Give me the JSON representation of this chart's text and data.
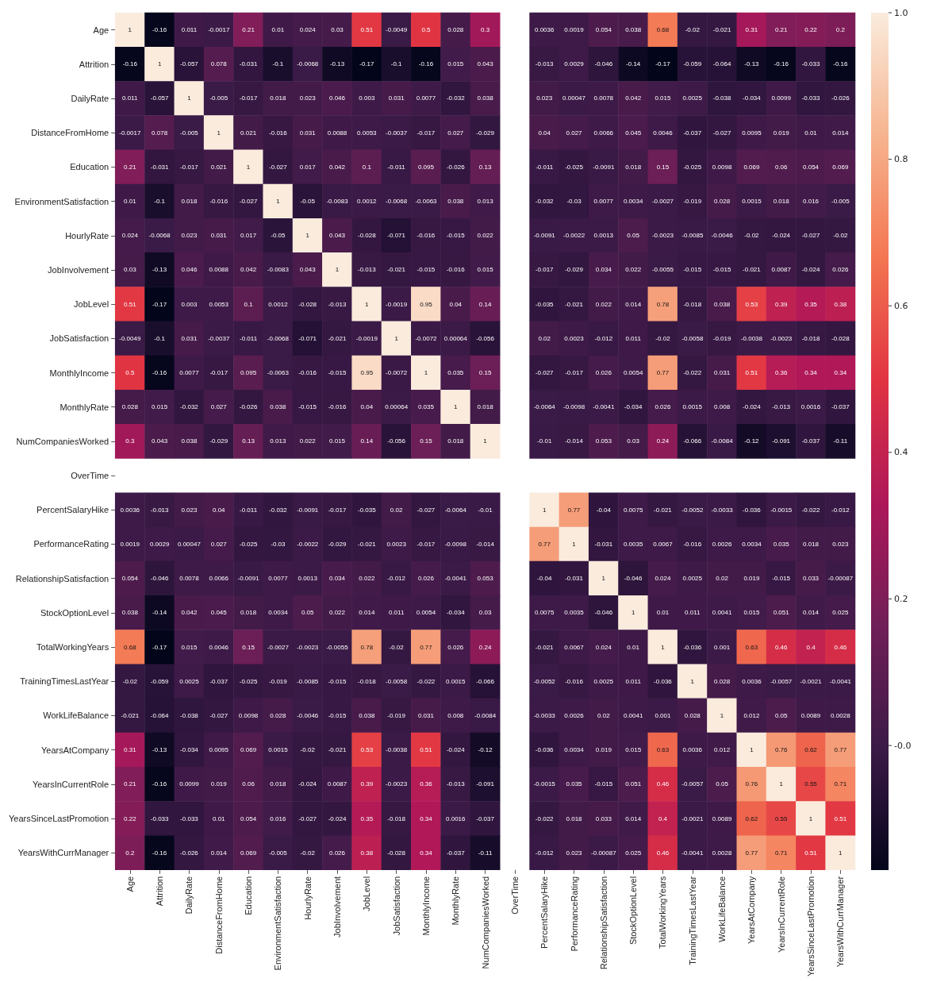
{
  "chart_data": {
    "type": "heatmap",
    "categories": [
      "Age",
      "Attrition",
      "DailyRate",
      "DistanceFromHome",
      "Education",
      "EnvironmentSatisfaction",
      "HourlyRate",
      "JobInvolvement",
      "JobLevel",
      "JobSatisfaction",
      "MonthlyIncome",
      "MonthlyRate",
      "NumCompaniesWorked",
      "OverTime",
      "PercentSalaryHike",
      "PerformanceRating",
      "RelationshipSatisfaction",
      "StockOptionLevel",
      "TotalWorkingYears",
      "TrainingTimesLastYear",
      "WorkLifeBalance",
      "YearsAtCompany",
      "YearsInCurrentRole",
      "YearsSinceLastPromotion",
      "YearsWithCurrManager"
    ],
    "y_categories": [
      "Age",
      "Attrition",
      "DailyRate",
      "DistanceFromHome",
      "Education",
      "EnvironmentSatisfaction",
      "HourlyRate",
      "JobInvolvement",
      "JobLevel",
      "JobSatisfaction",
      "MonthlyIncome",
      "MonthlyRate",
      "NumCompaniesWorked",
      "OverTime",
      "PercentSalaryHike",
      "PerformanceRating",
      "RelationshipSatisfaction",
      "StockOptionLevel",
      "TotalWorkingYears",
      "TrainingTimesLastYear",
      "WorkLifeBalance",
      "YearsAtCompany",
      "YearsInCurrentRole",
      "YearsSinceLastPromotion",
      "YearsWithCurrManager"
    ],
    "cells": [
      [
        1,
        -0.16,
        0.011,
        -0.0017,
        0.21,
        0.01,
        0.024,
        0.03,
        0.51,
        -0.0049,
        0.5,
        0.028,
        0.3,
        null,
        0.0036,
        0.0019,
        0.054,
        0.038,
        0.68,
        -0.02,
        -0.021,
        0.31,
        0.21,
        0.22,
        0.2
      ],
      [
        -0.16,
        1,
        -0.057,
        0.078,
        -0.031,
        -0.1,
        -0.0068,
        -0.13,
        -0.17,
        -0.1,
        -0.16,
        0.015,
        0.043,
        null,
        -0.013,
        0.0029,
        -0.046,
        -0.14,
        -0.17,
        -0.059,
        -0.064,
        -0.13,
        -0.16,
        -0.033,
        -0.16
      ],
      [
        0.011,
        -0.057,
        1,
        -0.005,
        -0.017,
        0.018,
        0.023,
        0.046,
        0.003,
        0.031,
        0.0077,
        -0.032,
        0.038,
        null,
        0.023,
        0.00047,
        0.0078,
        0.042,
        0.015,
        0.0025,
        -0.038,
        -0.034,
        0.0099,
        -0.033,
        -0.026
      ],
      [
        -0.0017,
        0.078,
        -0.005,
        1,
        0.021,
        -0.016,
        0.031,
        0.0088,
        0.0053,
        -0.0037,
        -0.017,
        0.027,
        -0.029,
        null,
        0.04,
        0.027,
        0.0066,
        0.045,
        0.0046,
        -0.037,
        -0.027,
        0.0095,
        0.019,
        0.01,
        0.014
      ],
      [
        0.21,
        -0.031,
        -0.017,
        0.021,
        1,
        -0.027,
        0.017,
        0.042,
        0.1,
        -0.011,
        0.095,
        -0.026,
        0.13,
        null,
        -0.011,
        -0.025,
        -0.0091,
        0.018,
        0.15,
        -0.025,
        0.0098,
        0.069,
        0.06,
        0.054,
        0.069
      ],
      [
        0.01,
        -0.1,
        0.018,
        -0.016,
        -0.027,
        1,
        -0.05,
        -0.0083,
        0.0012,
        -0.0068,
        -0.0063,
        0.038,
        0.013,
        null,
        -0.032,
        -0.03,
        0.0077,
        0.0034,
        -0.0027,
        -0.019,
        0.028,
        0.0015,
        0.018,
        0.016,
        -0.005
      ],
      [
        0.024,
        -0.0068,
        0.023,
        0.031,
        0.017,
        -0.05,
        1,
        0.043,
        -0.028,
        -0.071,
        -0.016,
        -0.015,
        0.022,
        null,
        -0.0091,
        -0.0022,
        0.0013,
        0.05,
        -0.0023,
        -0.0085,
        -0.0046,
        -0.02,
        -0.024,
        -0.027,
        -0.02
      ],
      [
        0.03,
        -0.13,
        0.046,
        0.0088,
        0.042,
        -0.0083,
        0.043,
        1,
        -0.013,
        -0.021,
        -0.015,
        -0.016,
        0.015,
        null,
        -0.017,
        -0.029,
        0.034,
        0.022,
        -0.0055,
        -0.015,
        -0.015,
        -0.021,
        0.0087,
        -0.024,
        0.026
      ],
      [
        0.51,
        -0.17,
        0.003,
        0.0053,
        0.1,
        0.0012,
        -0.028,
        -0.013,
        1,
        -0.0019,
        0.95,
        0.04,
        0.14,
        null,
        -0.035,
        -0.021,
        0.022,
        0.014,
        0.78,
        -0.018,
        0.038,
        0.53,
        0.39,
        0.35,
        0.38
      ],
      [
        -0.0049,
        -0.1,
        0.031,
        -0.0037,
        -0.011,
        -0.0068,
        -0.071,
        -0.021,
        -0.0019,
        1,
        -0.0072,
        0.00064,
        -0.056,
        null,
        0.02,
        0.0023,
        -0.012,
        0.011,
        -0.02,
        -0.0058,
        -0.019,
        -0.0038,
        -0.0023,
        -0.018,
        -0.028
      ],
      [
        0.5,
        -0.16,
        0.0077,
        -0.017,
        0.095,
        -0.0063,
        -0.016,
        -0.015,
        0.95,
        -0.0072,
        1,
        0.035,
        0.15,
        null,
        -0.027,
        -0.017,
        0.026,
        0.0054,
        0.77,
        -0.022,
        0.031,
        0.51,
        0.36,
        0.34,
        0.34
      ],
      [
        0.028,
        0.015,
        -0.032,
        0.027,
        -0.026,
        0.038,
        -0.015,
        -0.016,
        0.04,
        0.00064,
        0.035,
        1,
        0.018,
        null,
        -0.0064,
        -0.0098,
        -0.0041,
        -0.034,
        0.026,
        0.0015,
        0.008,
        -0.024,
        -0.013,
        0.0016,
        -0.037
      ],
      [
        0.3,
        0.043,
        0.038,
        -0.029,
        0.13,
        0.013,
        0.022,
        0.015,
        0.14,
        -0.056,
        0.15,
        0.018,
        1,
        null,
        -0.01,
        -0.014,
        0.053,
        0.03,
        0.24,
        -0.066,
        -0.0084,
        -0.12,
        -0.091,
        -0.037,
        -0.11
      ],
      [
        null,
        null,
        null,
        null,
        null,
        null,
        null,
        null,
        null,
        null,
        null,
        null,
        null,
        null,
        null,
        null,
        null,
        null,
        null,
        null,
        null,
        null,
        null,
        null,
        null
      ],
      [
        0.0036,
        -0.013,
        0.023,
        0.04,
        -0.011,
        -0.032,
        -0.0091,
        -0.017,
        -0.035,
        0.02,
        -0.027,
        -0.0064,
        -0.01,
        null,
        1,
        0.77,
        -0.04,
        0.0075,
        -0.021,
        -0.0052,
        -0.0033,
        -0.036,
        -0.0015,
        -0.022,
        -0.012
      ],
      [
        0.0019,
        0.0029,
        0.00047,
        0.027,
        -0.025,
        -0.03,
        -0.0022,
        -0.029,
        -0.021,
        0.0023,
        -0.017,
        -0.0098,
        -0.014,
        null,
        0.77,
        1,
        -0.031,
        0.0035,
        0.0067,
        -0.016,
        0.0026,
        0.0034,
        0.035,
        0.018,
        0.023
      ],
      [
        0.054,
        -0.046,
        0.0078,
        0.0066,
        -0.0091,
        0.0077,
        0.0013,
        0.034,
        0.022,
        -0.012,
        0.026,
        -0.0041,
        0.053,
        null,
        -0.04,
        -0.031,
        1,
        -0.046,
        0.024,
        0.0025,
        0.02,
        0.019,
        -0.015,
        0.033,
        -0.00087
      ],
      [
        0.038,
        -0.14,
        0.042,
        0.045,
        0.018,
        0.0034,
        0.05,
        0.022,
        0.014,
        0.011,
        0.0054,
        -0.034,
        0.03,
        null,
        0.0075,
        0.0035,
        -0.046,
        1,
        0.01,
        0.011,
        0.0041,
        0.015,
        0.051,
        0.014,
        0.025
      ],
      [
        0.68,
        -0.17,
        0.015,
        0.0046,
        0.15,
        -0.0027,
        -0.0023,
        -0.0055,
        0.78,
        -0.02,
        0.77,
        0.026,
        0.24,
        null,
        -0.021,
        0.0067,
        0.024,
        0.01,
        1,
        -0.036,
        0.001,
        0.63,
        0.46,
        0.4,
        0.46
      ],
      [
        -0.02,
        -0.059,
        0.0025,
        -0.037,
        -0.025,
        -0.019,
        -0.0085,
        -0.015,
        -0.018,
        -0.0058,
        -0.022,
        0.0015,
        -0.066,
        null,
        -0.0052,
        -0.016,
        0.0025,
        0.011,
        -0.036,
        1,
        0.028,
        0.0036,
        -0.0057,
        -0.0021,
        -0.0041
      ],
      [
        -0.021,
        -0.064,
        -0.038,
        -0.027,
        0.0098,
        0.028,
        -0.0046,
        -0.015,
        0.038,
        -0.019,
        0.031,
        0.008,
        -0.0084,
        null,
        -0.0033,
        0.0026,
        0.02,
        0.0041,
        0.001,
        0.028,
        1,
        0.012,
        0.05,
        0.0089,
        0.0028
      ],
      [
        0.31,
        -0.13,
        -0.034,
        0.0095,
        0.069,
        0.0015,
        -0.02,
        -0.021,
        0.53,
        -0.0038,
        0.51,
        -0.024,
        -0.12,
        null,
        -0.036,
        0.0034,
        0.019,
        0.015,
        0.63,
        0.0036,
        0.012,
        1,
        0.76,
        0.62,
        0.77
      ],
      [
        0.21,
        -0.16,
        0.0099,
        0.019,
        0.06,
        0.018,
        -0.024,
        0.0087,
        0.39,
        -0.0023,
        0.36,
        -0.013,
        -0.091,
        null,
        -0.0015,
        0.035,
        -0.015,
        0.051,
        0.46,
        -0.0057,
        0.05,
        0.76,
        1,
        0.55,
        0.71
      ],
      [
        0.22,
        -0.033,
        -0.033,
        0.01,
        0.054,
        0.016,
        -0.027,
        -0.024,
        0.35,
        -0.018,
        0.34,
        0.0016,
        -0.037,
        null,
        -0.022,
        0.018,
        0.033,
        0.014,
        0.4,
        -0.0021,
        0.0089,
        0.62,
        0.55,
        1,
        0.51
      ],
      [
        0.2,
        -0.16,
        -0.026,
        0.014,
        0.069,
        -0.005,
        -0.02,
        0.026,
        0.38,
        -0.028,
        0.34,
        -0.037,
        -0.11,
        null,
        -0.012,
        0.023,
        -0.00087,
        0.025,
        0.46,
        -0.0041,
        0.0028,
        0.77,
        0.71,
        0.51,
        1
      ]
    ],
    "clim": [
      -0.17,
      1
    ],
    "cticks": [
      {
        "value": 0,
        "label": "-0.0"
      },
      0.2,
      0.4,
      0.6,
      0.8,
      {
        "value": 1,
        "label": "1.0"
      }
    ],
    "data_labels": true
  }
}
